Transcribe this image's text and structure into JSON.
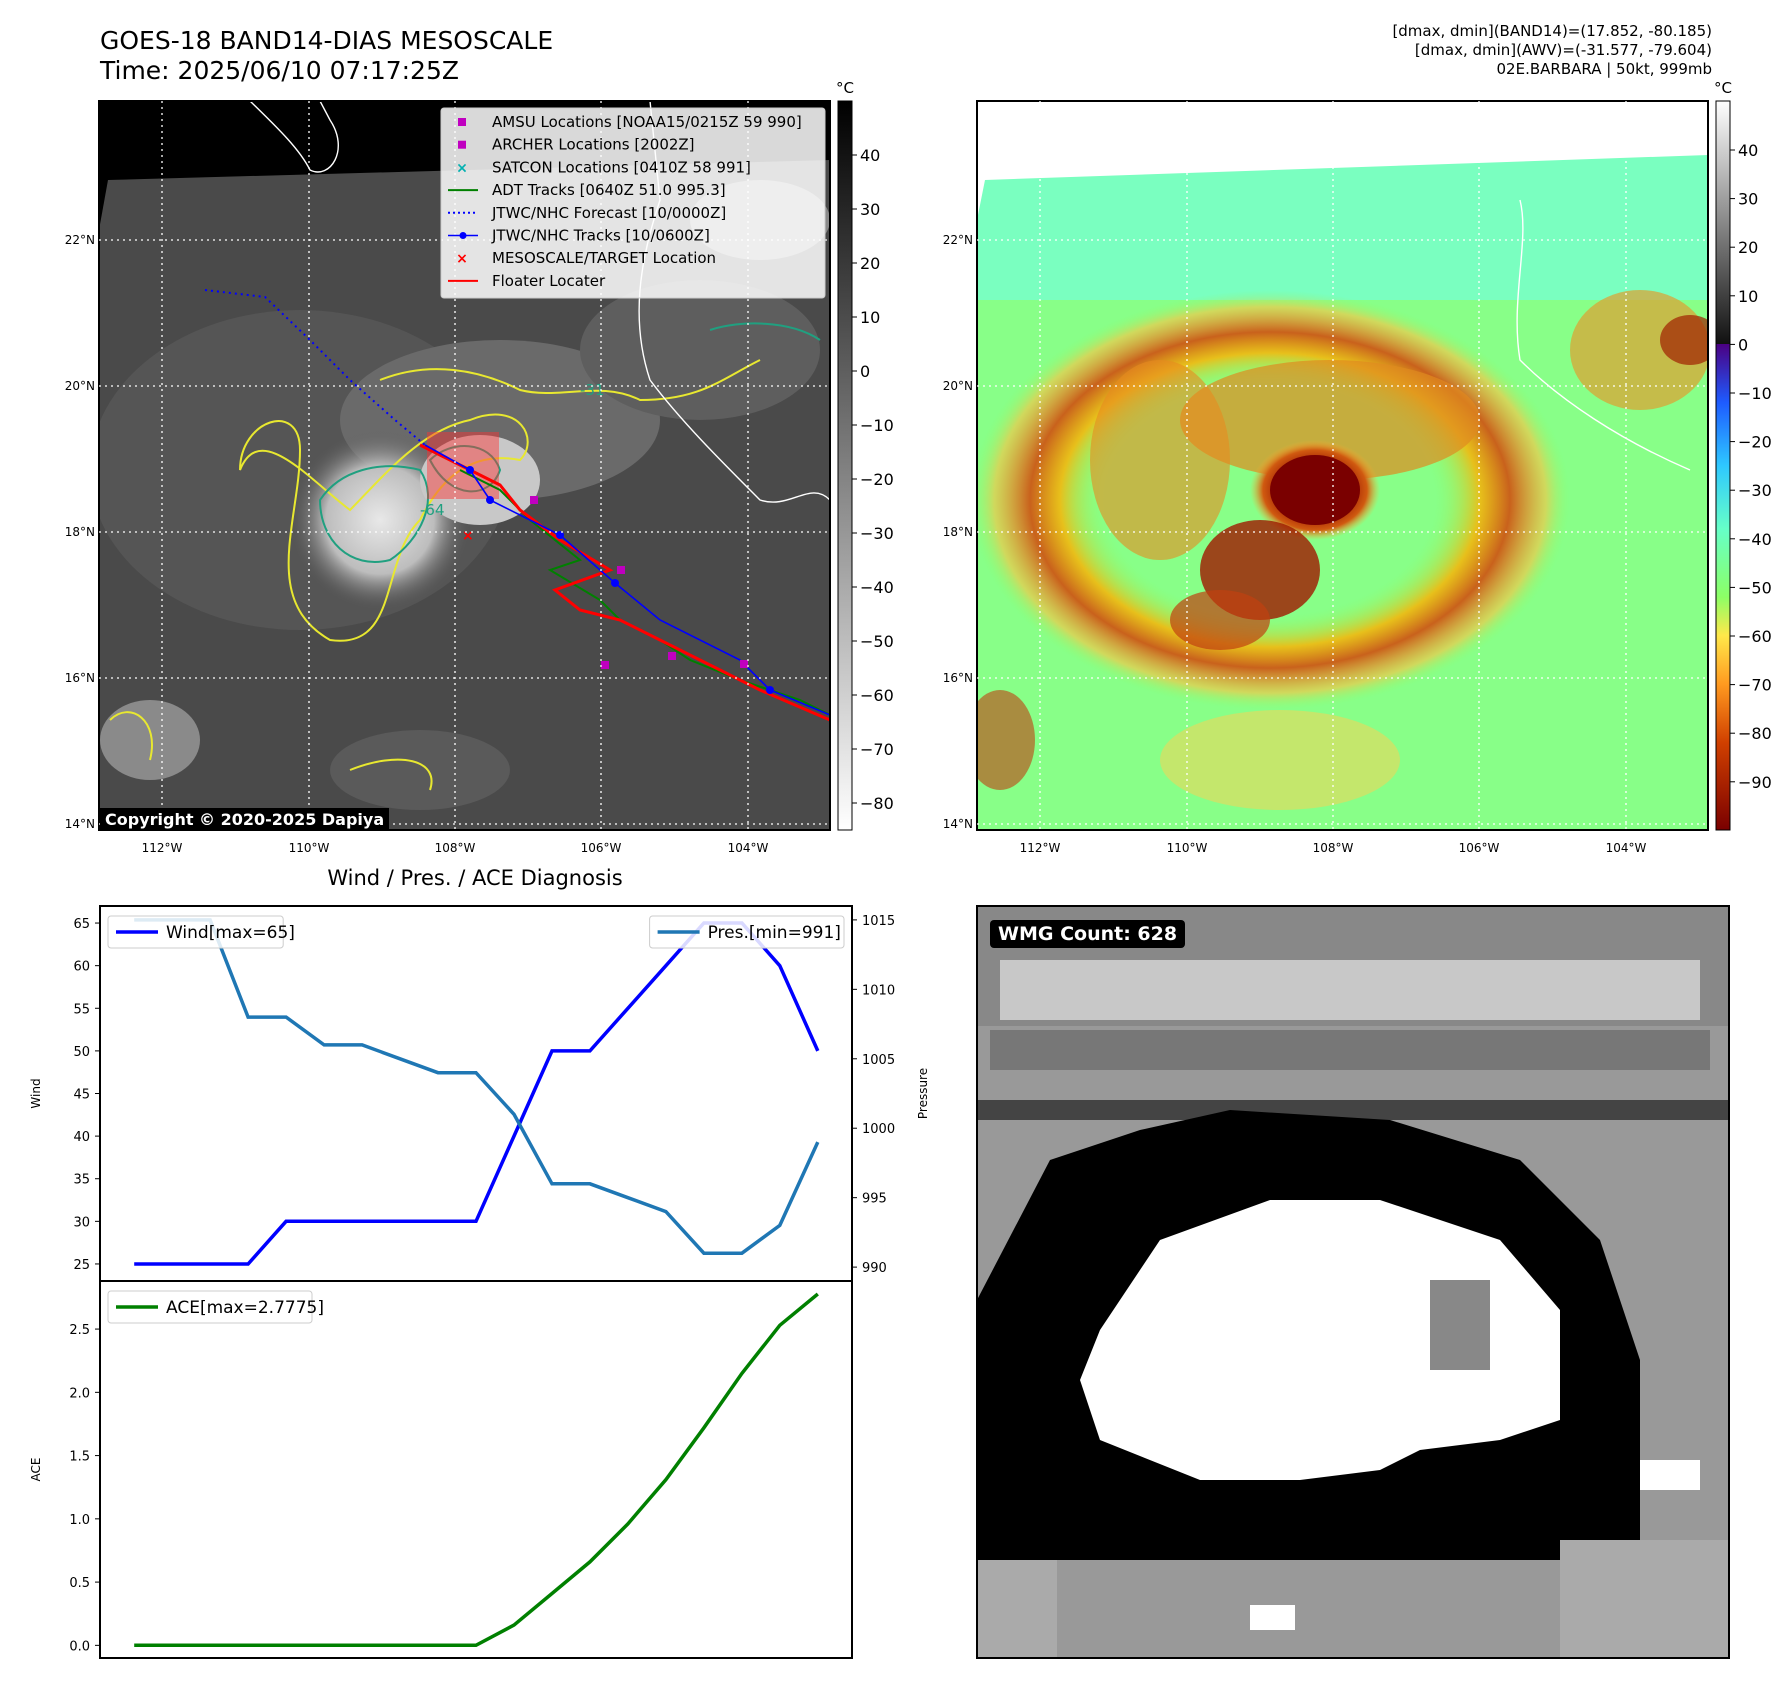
{
  "header": {
    "title_line1": "GOES-18 BAND14-DIAS MESOSCALE",
    "title_line2": "Time: 2025/06/10 07:17:25Z",
    "info_line1": "[dmax, dmin](BAND14)=(17.852, -80.185)",
    "info_line2": "[dmax, dmin](AWV)=(-31.577, -79.604)",
    "info_line3": "02E.BARBARA | 50kt, 999mb"
  },
  "map_axes": {
    "lon_ticks": [
      "112°W",
      "110°W",
      "108°W",
      "106°W",
      "104°W"
    ],
    "lat_ticks": [
      "22°N",
      "20°N",
      "18°N",
      "16°N",
      "14°N"
    ]
  },
  "ir_colorbar": {
    "unit": "°C",
    "ticks": [
      "40",
      "30",
      "20",
      "10",
      "0",
      "−10",
      "−20",
      "−30",
      "−40",
      "−50",
      "−60",
      "−70",
      "−80"
    ]
  },
  "awv_colorbar": {
    "unit": "°C",
    "ticks": [
      "40",
      "30",
      "20",
      "10",
      "0",
      "−10",
      "−20",
      "−30",
      "−40",
      "−50",
      "−60",
      "−70",
      "−80",
      "−90"
    ]
  },
  "legend": {
    "items": [
      {
        "label": "AMSU Locations [NOAA15/0215Z 59 990]",
        "color": "#c000c0",
        "marker": "square"
      },
      {
        "label": "ARCHER Locations [2002Z]",
        "color": "#c000c0",
        "marker": "square"
      },
      {
        "label": "SATCON Locations [0410Z 58 991]",
        "color": "#00b0b0",
        "marker": "x"
      },
      {
        "label": "ADT Tracks [0640Z 51.0 995.3]",
        "color": "#008000",
        "marker": "line"
      },
      {
        "label": "JTWC/NHC Forecast [10/0000Z]",
        "color": "#0000ff",
        "marker": "dotted"
      },
      {
        "label": "JTWC/NHC Tracks [10/0600Z]",
        "color": "#0000ff",
        "marker": "line-dot"
      },
      {
        "label": "MESOSCALE/TARGET Location",
        "color": "#ff0000",
        "marker": "x"
      },
      {
        "label": "Floater Locater",
        "color": "#ff0000",
        "marker": "line"
      }
    ]
  },
  "contour_labels": [
    "-64",
    "-31"
  ],
  "copyright": "Copyright © 2020-2025 Dapiya",
  "wmg_label": "WMG Count: 628",
  "chart_data": [
    {
      "type": "line",
      "title": "Wind / Pres. / ACE Diagnosis",
      "ylabel": "Wind",
      "y2label": "Pressure",
      "ylim": [
        23.0,
        67.0
      ],
      "y2lim": [
        989.0,
        1016.0
      ],
      "yticks": [
        25,
        30,
        35,
        40,
        45,
        50,
        55,
        60,
        65
      ],
      "y2ticks": [
        990,
        995,
        1000,
        1005,
        1010,
        1015
      ],
      "x": [
        0,
        1,
        2,
        3,
        4,
        5,
        6,
        7,
        8,
        9,
        10,
        11,
        12,
        13,
        14,
        15,
        16,
        17,
        18
      ],
      "series": [
        {
          "name": "Wind[max=65]",
          "axis": "left",
          "color": "#0000ff",
          "values": [
            25,
            25,
            25,
            25,
            30,
            30,
            30,
            30,
            30,
            30,
            40,
            50,
            50,
            55,
            60,
            65,
            65,
            60,
            50
          ]
        },
        {
          "name": "Pres.[min=991]",
          "axis": "right",
          "color": "#1f77b4",
          "values": [
            1015,
            1015,
            1015,
            1008,
            1008,
            1006,
            1006,
            1005,
            1004,
            1004,
            1001,
            996,
            996,
            995,
            994,
            991,
            991,
            993,
            999
          ]
        }
      ]
    },
    {
      "type": "line",
      "ylabel": "ACE",
      "ylim": [
        -0.1,
        2.88
      ],
      "yticks": [
        0.0,
        0.5,
        1.0,
        1.5,
        2.0,
        2.5
      ],
      "x": [
        0,
        1,
        2,
        3,
        4,
        5,
        6,
        7,
        8,
        9,
        10,
        11,
        12,
        13,
        14,
        15,
        16,
        17,
        18
      ],
      "series": [
        {
          "name": "ACE[max=2.7775]",
          "color": "#008000",
          "values": [
            0,
            0,
            0,
            0,
            0,
            0,
            0,
            0,
            0,
            0,
            0.16,
            0.41,
            0.66,
            0.96,
            1.31,
            1.72,
            2.15,
            2.53,
            2.7775
          ]
        }
      ]
    }
  ]
}
